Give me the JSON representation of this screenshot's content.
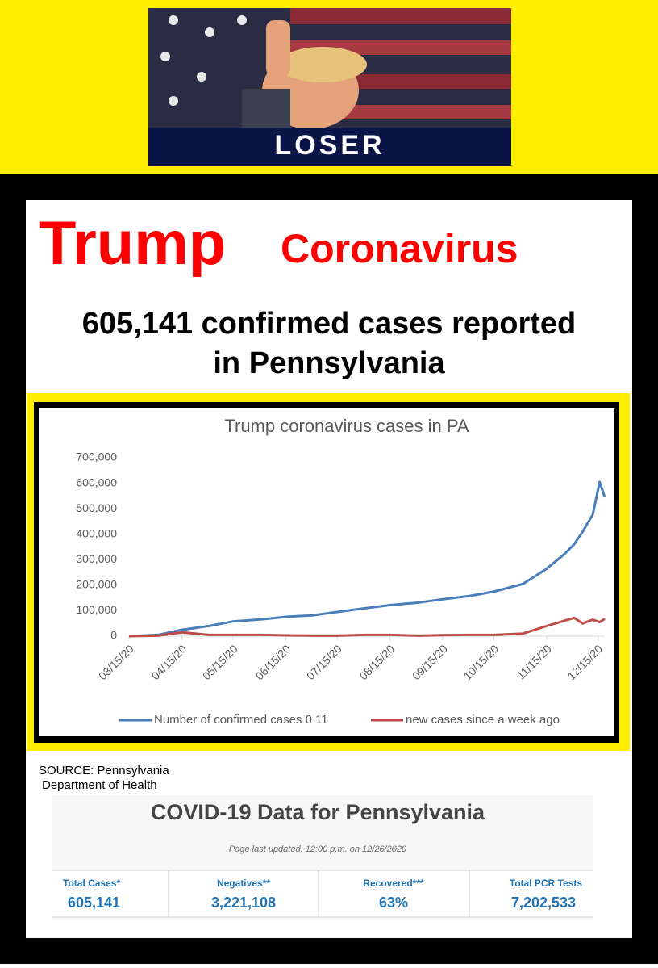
{
  "banner": {
    "caption": "LOSER"
  },
  "headline": {
    "word1": "Trump",
    "word2": "Coronavirus",
    "line1": "605,141 confirmed cases reported",
    "line2": "in Pennsylvania"
  },
  "chart_data": {
    "type": "line",
    "title": "Trump coronavirus cases in PA",
    "x": [
      "03/15/20",
      "04/01/20",
      "04/15/20",
      "05/01/20",
      "05/15/20",
      "06/01/20",
      "06/15/20",
      "07/01/20",
      "07/15/20",
      "08/01/20",
      "08/15/20",
      "09/01/20",
      "09/15/20",
      "10/01/20",
      "10/15/20",
      "11/01/20",
      "11/15/20",
      "11/25/20",
      "12/01/20",
      "12/06/20",
      "12/12/20",
      "12/16/20",
      "12/19/20"
    ],
    "series": [
      {
        "name": "Number of confirmed cases 0 11",
        "color": "#4a7ebb",
        "values": [
          0,
          5000,
          25000,
          40000,
          58000,
          66000,
          76000,
          82000,
          95000,
          110000,
          122000,
          132000,
          145000,
          158000,
          175000,
          205000,
          265000,
          320000,
          360000,
          410000,
          478000,
          605000,
          545000
        ]
      },
      {
        "name": "new cases since a week ago",
        "color": "#be4b48",
        "values": [
          0,
          2000,
          15000,
          5000,
          5000,
          5000,
          3000,
          2000,
          2000,
          5000,
          5000,
          2000,
          4000,
          5000,
          5000,
          10000,
          40000,
          60000,
          72000,
          50000,
          65000,
          55000,
          68000
        ]
      }
    ],
    "xlim": [
      "03/15/20",
      "12/19/20"
    ],
    "xticks": [
      "03/15/20",
      "04/15/20",
      "05/15/20",
      "06/15/20",
      "07/15/20",
      "08/15/20",
      "09/15/20",
      "10/15/20",
      "11/15/20",
      "12/15/20"
    ],
    "ylim": [
      0,
      700000
    ],
    "yticks": [
      0,
      {
        "value": 100000,
        "label": "100,000"
      },
      {
        "value": 200000,
        "label": "200,000"
      },
      {
        "value": 300000,
        "label": "300,000"
      },
      {
        "value": 400000,
        "label": "400,000"
      },
      {
        "value": 500000,
        "label": "500,000"
      },
      {
        "value": 600000,
        "label": "600,000"
      },
      {
        "value": 700000,
        "label": "700,000"
      }
    ],
    "grid": false
  },
  "source": {
    "line1": "SOURCE: Pennsylvania",
    "line2": "Department of Health"
  },
  "dashboard": {
    "title": "COVID-19 Data for Pennsylvania",
    "updated": "Page last updated: 12:00 p.m. on 12/26/2020",
    "columns": [
      {
        "label": "Total Cases*",
        "value": "605,141"
      },
      {
        "label": "Negatives**",
        "value": "3,221,108"
      },
      {
        "label": "Recovered***",
        "value": "63%"
      },
      {
        "label": "Total PCR Tests",
        "value": "7,202,533"
      }
    ]
  }
}
